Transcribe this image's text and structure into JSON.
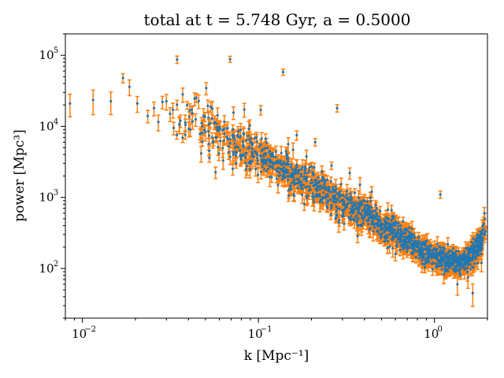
{
  "chart_data": {
    "type": "scatter",
    "title": "total at t = 5.748 Gyr, a = 0.5000",
    "xlabel": "k [Mpc⁻¹]",
    "ylabel": "power [Mpc³]",
    "xscale": "log",
    "yscale": "log",
    "xlim": [
      0.008,
      2.0
    ],
    "ylim": [
      20,
      200000
    ],
    "x_ticks": [
      {
        "label_base": "10",
        "label_exp": "−2"
      },
      {
        "label_base": "10",
        "label_exp": "−1"
      },
      {
        "label_base": "10",
        "label_exp": "0"
      }
    ],
    "y_ticks": [
      {
        "label_base": "10",
        "label_exp": "2"
      },
      {
        "label_base": "10",
        "label_exp": "3"
      },
      {
        "label_base": "10",
        "label_exp": "4"
      },
      {
        "label_base": "10",
        "label_exp": "5"
      }
    ],
    "grid": false,
    "colors": {
      "points": "#1f77b4",
      "errorbars": "#ff7f0e"
    },
    "series_points": [
      [
        0.0085,
        21000,
        0.35
      ],
      [
        0.0115,
        23500,
        0.38
      ],
      [
        0.0145,
        22500,
        0.35
      ],
      [
        0.017,
        48000,
        0.15
      ],
      [
        0.0185,
        36000,
        0.25
      ],
      [
        0.0205,
        21000,
        0.25
      ],
      [
        0.0235,
        14000,
        0.2
      ],
      [
        0.0255,
        18000,
        0.22
      ],
      [
        0.027,
        11500,
        0.25
      ],
      [
        0.0285,
        22000,
        0.2
      ],
      [
        0.03,
        22500,
        0.25
      ],
      [
        0.0315,
        15000,
        0.22
      ],
      [
        0.033,
        9500,
        0.2
      ],
      [
        0.0345,
        87000,
        0.12
      ],
      [
        0.036,
        12000,
        0.2
      ],
      [
        0.0385,
        10500,
        0.2
      ],
      [
        0.041,
        9000,
        0.2
      ],
      [
        0.044,
        12500,
        0.2
      ],
      [
        0.048,
        10000,
        0.22
      ],
      [
        0.052,
        8500,
        0.2
      ],
      [
        0.056,
        11000,
        0.18
      ],
      [
        0.059,
        9500,
        0.2
      ],
      [
        0.063,
        3300,
        0.25
      ],
      [
        0.066,
        7000,
        0.2
      ],
      [
        0.069,
        88000,
        0.1
      ],
      [
        0.072,
        4000,
        0.25
      ],
      [
        0.076,
        7500,
        0.18
      ],
      [
        0.082,
        5500,
        0.2
      ],
      [
        0.09,
        6000,
        0.18
      ],
      [
        0.097,
        4200,
        0.2
      ],
      [
        0.103,
        17000,
        0.15
      ],
      [
        0.11,
        3200,
        0.2
      ],
      [
        0.118,
        3800,
        0.18
      ],
      [
        0.13,
        2600,
        0.2
      ],
      [
        0.138,
        58000,
        0.1
      ],
      [
        0.145,
        3000,
        0.2
      ],
      [
        0.155,
        2100,
        0.2
      ],
      [
        0.165,
        7500,
        0.15
      ],
      [
        0.18,
        1500,
        0.22
      ],
      [
        0.195,
        2400,
        0.2
      ],
      [
        0.21,
        6000,
        0.12
      ],
      [
        0.24,
        1300,
        0.2
      ],
      [
        0.26,
        2800,
        0.12
      ],
      [
        0.28,
        18000,
        0.12
      ],
      [
        0.3,
        900,
        0.2
      ],
      [
        0.33,
        2200,
        0.18
      ],
      [
        0.36,
        750,
        0.22
      ],
      [
        0.4,
        900,
        0.2
      ],
      [
        0.44,
        1200,
        0.18
      ],
      [
        0.47,
        560,
        0.2
      ],
      [
        0.51,
        420,
        0.22
      ],
      [
        0.55,
        500,
        0.18
      ],
      [
        0.6,
        160,
        0.2
      ],
      [
        0.65,
        300,
        0.2
      ],
      [
        0.7,
        350,
        0.18
      ],
      [
        0.78,
        220,
        0.2
      ],
      [
        0.85,
        130,
        0.22
      ],
      [
        0.92,
        180,
        0.2
      ],
      [
        1.0,
        150,
        0.2
      ],
      [
        1.08,
        1100,
        0.12
      ],
      [
        1.15,
        95,
        0.25
      ],
      [
        1.25,
        140,
        0.2
      ],
      [
        1.35,
        60,
        0.3
      ],
      [
        1.45,
        110,
        0.25
      ],
      [
        1.55,
        75,
        0.3
      ],
      [
        1.65,
        45,
        0.35
      ],
      [
        1.75,
        300,
        0.2
      ],
      [
        1.85,
        120,
        0.25
      ],
      [
        1.92,
        600,
        0.2
      ]
    ],
    "trend": [
      [
        0.012,
        24000
      ],
      [
        0.02,
        19000
      ],
      [
        0.03,
        14000
      ],
      [
        0.04,
        11500
      ],
      [
        0.06,
        8000
      ],
      [
        0.08,
        5200
      ],
      [
        0.1,
        3800
      ],
      [
        0.15,
        2300
      ],
      [
        0.2,
        1500
      ],
      [
        0.3,
        850
      ],
      [
        0.4,
        580
      ],
      [
        0.5,
        420
      ],
      [
        0.6,
        320
      ],
      [
        0.7,
        250
      ],
      [
        0.8,
        200
      ],
      [
        0.9,
        165
      ],
      [
        1.0,
        150
      ],
      [
        1.2,
        130
      ],
      [
        1.4,
        120
      ],
      [
        1.6,
        145
      ],
      [
        1.8,
        220
      ],
      [
        1.95,
        330
      ]
    ]
  }
}
